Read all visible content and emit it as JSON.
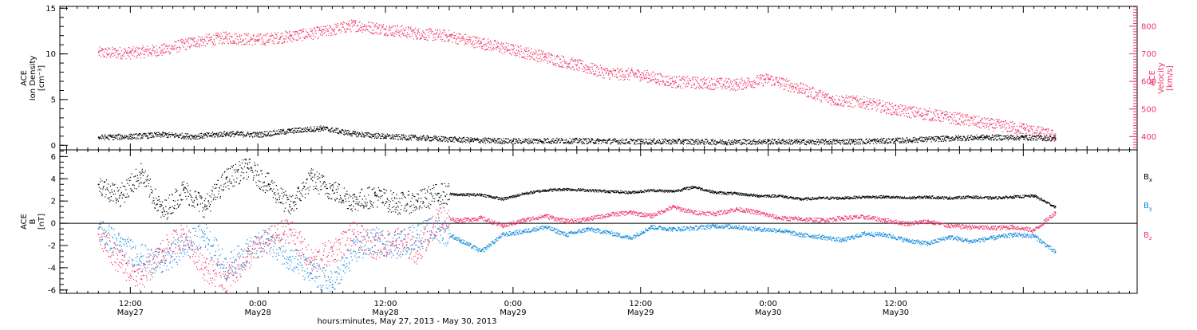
{
  "chart_data": [
    {
      "type": "scatter",
      "panel": "top",
      "ylabel_lines": [
        "ACE",
        "Ion Density",
        "[cm⁻³]"
      ],
      "ylim": [
        -0.5,
        15.2
      ],
      "yticks": [
        0,
        5,
        10,
        15
      ],
      "y2label_lines": [
        "ACE",
        "Velocity",
        "[km/s]"
      ],
      "y2lim": [
        352,
        872
      ],
      "y2ticks": [
        400,
        500,
        600,
        700,
        800
      ],
      "y2_color": "#ee3366",
      "series": [
        {
          "axis": "left",
          "color": "#000000",
          "points": [
            [
              9,
              0.9
            ],
            [
              12,
              1.0
            ],
            [
              15,
              1.2
            ],
            [
              18,
              1.0
            ],
            [
              21,
              1.3
            ],
            [
              24,
              1.2
            ],
            [
              27,
              1.6
            ],
            [
              30,
              1.9
            ],
            [
              33,
              1.3
            ],
            [
              36,
              1.0
            ],
            [
              40,
              0.8
            ],
            [
              44,
              0.6
            ],
            [
              48,
              0.5
            ],
            [
              52,
              0.55
            ],
            [
              56,
              0.5
            ],
            [
              60,
              0.45
            ],
            [
              64,
              0.45
            ],
            [
              68,
              0.4
            ],
            [
              72,
              0.45
            ],
            [
              76,
              0.4
            ],
            [
              80,
              0.45
            ],
            [
              84,
              0.55
            ],
            [
              88,
              0.75
            ],
            [
              92,
              0.9
            ],
            [
              96,
              0.9
            ],
            [
              99,
              0.8
            ]
          ]
        },
        {
          "axis": "right",
          "color": "#ee3366",
          "points": [
            [
              9,
              705
            ],
            [
              12,
              705
            ],
            [
              15,
              715
            ],
            [
              18,
              745
            ],
            [
              21,
              760
            ],
            [
              24,
              752
            ],
            [
              27,
              765
            ],
            [
              30,
              780
            ],
            [
              33,
              805
            ],
            [
              36,
              790
            ],
            [
              39,
              775
            ],
            [
              42,
              765
            ],
            [
              45,
              740
            ],
            [
              48,
              715
            ],
            [
              51,
              690
            ],
            [
              54,
              660
            ],
            [
              57,
              630
            ],
            [
              60,
              625
            ],
            [
              63,
              600
            ],
            [
              66,
              595
            ],
            [
              69,
              590
            ],
            [
              72,
              610
            ],
            [
              75,
              575
            ],
            [
              78,
              535
            ],
            [
              81,
              525
            ],
            [
              84,
              498
            ],
            [
              87,
              482
            ],
            [
              90,
              465
            ],
            [
              93,
              445
            ],
            [
              96,
              430
            ],
            [
              99,
              403
            ]
          ]
        }
      ]
    },
    {
      "type": "scatter",
      "panel": "bottom",
      "ylabel_lines": [
        "ACE",
        "B",
        "[nT]"
      ],
      "ylim": [
        -6.3,
        6.6
      ],
      "yticks": [
        -6,
        -4,
        -2,
        0,
        2,
        4,
        6
      ],
      "series": [
        {
          "name": "B",
          "subscript": "x",
          "color": "#000000",
          "points": [
            [
              9,
              3.5
            ],
            [
              11,
              2.5
            ],
            [
              13,
              4.5
            ],
            [
              15,
              1.0
            ],
            [
              17,
              3.0
            ],
            [
              19,
              1.5
            ],
            [
              21,
              4.0
            ],
            [
              23,
              5.0
            ],
            [
              25,
              3.5
            ],
            [
              27,
              1.5
            ],
            [
              29,
              4.0
            ],
            [
              31,
              3.0
            ],
            [
              33,
              2.0
            ],
            [
              35,
              2.5
            ],
            [
              37,
              1.8
            ],
            [
              39,
              2.0
            ],
            [
              41,
              2.7
            ],
            [
              43,
              2.6
            ],
            [
              45,
              2.6
            ],
            [
              47,
              2.2
            ],
            [
              49,
              2.7
            ],
            [
              51,
              3.0
            ],
            [
              53,
              3.1
            ],
            [
              55,
              3.0
            ],
            [
              57,
              2.9
            ],
            [
              59,
              2.8
            ],
            [
              61,
              3.0
            ],
            [
              63,
              2.9
            ],
            [
              65,
              3.3
            ],
            [
              67,
              2.8
            ],
            [
              69,
              2.7
            ],
            [
              71,
              2.5
            ],
            [
              73,
              2.5
            ],
            [
              75,
              2.2
            ],
            [
              77,
              2.3
            ],
            [
              79,
              2.3
            ],
            [
              81,
              2.4
            ],
            [
              83,
              2.4
            ],
            [
              85,
              2.3
            ],
            [
              87,
              2.4
            ],
            [
              89,
              2.3
            ],
            [
              91,
              2.4
            ],
            [
              93,
              2.3
            ],
            [
              95,
              2.4
            ],
            [
              97,
              2.5
            ],
            [
              99,
              1.5
            ]
          ]
        },
        {
          "name": "B",
          "subscript": "y",
          "color": "#1188dd",
          "points": [
            [
              9,
              -0.5
            ],
            [
              11,
              -2.0
            ],
            [
              13,
              -3.0
            ],
            [
              15,
              -3.5
            ],
            [
              17,
              -2.0
            ],
            [
              19,
              -1.0
            ],
            [
              21,
              -4.0
            ],
            [
              23,
              -2.5
            ],
            [
              25,
              -1.5
            ],
            [
              27,
              -3.0
            ],
            [
              29,
              -4.5
            ],
            [
              31,
              -5.5
            ],
            [
              33,
              -2.5
            ],
            [
              35,
              -1.5
            ],
            [
              37,
              -2.0
            ],
            [
              39,
              -1.0
            ],
            [
              41,
              -0.5
            ],
            [
              43,
              -1.5
            ],
            [
              45,
              -2.5
            ],
            [
              47,
              -1.0
            ],
            [
              49,
              -0.7
            ],
            [
              51,
              -0.3
            ],
            [
              53,
              -1.0
            ],
            [
              55,
              -0.5
            ],
            [
              57,
              -0.8
            ],
            [
              59,
              -1.3
            ],
            [
              61,
              -0.3
            ],
            [
              63,
              -0.5
            ],
            [
              65,
              -0.4
            ],
            [
              67,
              -0.2
            ],
            [
              69,
              -0.3
            ],
            [
              71,
              -0.5
            ],
            [
              73,
              -0.6
            ],
            [
              75,
              -1.0
            ],
            [
              77,
              -1.2
            ],
            [
              79,
              -1.5
            ],
            [
              81,
              -0.9
            ],
            [
              83,
              -1.0
            ],
            [
              85,
              -1.5
            ],
            [
              87,
              -1.8
            ],
            [
              89,
              -1.2
            ],
            [
              91,
              -1.6
            ],
            [
              93,
              -1.3
            ],
            [
              95,
              -1.0
            ],
            [
              97,
              -1.1
            ],
            [
              99,
              -2.6
            ]
          ]
        },
        {
          "name": "B",
          "subscript": "z",
          "color": "#ee3366",
          "points": [
            [
              9,
              -1.0
            ],
            [
              11,
              -3.5
            ],
            [
              13,
              -5.0
            ],
            [
              15,
              -2.5
            ],
            [
              17,
              -1.0
            ],
            [
              19,
              -4.0
            ],
            [
              21,
              -5.0
            ],
            [
              23,
              -3.0
            ],
            [
              25,
              -1.5
            ],
            [
              27,
              -0.5
            ],
            [
              29,
              -3.5
            ],
            [
              31,
              -2.5
            ],
            [
              33,
              -1.0
            ],
            [
              35,
              -2.0
            ],
            [
              37,
              -1.5
            ],
            [
              39,
              -2.5
            ],
            [
              41,
              0.5
            ],
            [
              43,
              0.3
            ],
            [
              45,
              0.5
            ],
            [
              47,
              -0.2
            ],
            [
              49,
              0.3
            ],
            [
              51,
              0.7
            ],
            [
              53,
              0.2
            ],
            [
              55,
              0.4
            ],
            [
              57,
              0.8
            ],
            [
              59,
              1.0
            ],
            [
              61,
              0.7
            ],
            [
              63,
              1.5
            ],
            [
              65,
              1.0
            ],
            [
              67,
              0.9
            ],
            [
              69,
              1.3
            ],
            [
              71,
              1.0
            ],
            [
              73,
              0.5
            ],
            [
              75,
              0.4
            ],
            [
              77,
              0.3
            ],
            [
              79,
              0.5
            ],
            [
              81,
              0.6
            ],
            [
              83,
              0.3
            ],
            [
              85,
              0.0
            ],
            [
              87,
              0.2
            ],
            [
              89,
              -0.2
            ],
            [
              91,
              -0.3
            ],
            [
              93,
              -0.4
            ],
            [
              95,
              -0.3
            ],
            [
              97,
              -0.6
            ],
            [
              99,
              1.0
            ]
          ]
        }
      ]
    }
  ],
  "time_axis": {
    "xlim": [
      5.37,
      106.71
    ],
    "xlabel": "hours:minutes, May 27, 2013 - May 30, 2013",
    "major_ticks": [
      {
        "t": 12,
        "time": "12:00",
        "day": "May27"
      },
      {
        "t": 24,
        "time": "0:00",
        "day": "May28"
      },
      {
        "t": 36,
        "time": "12:00",
        "day": "May28"
      },
      {
        "t": 48,
        "time": "0:00",
        "day": "May29"
      },
      {
        "t": 60,
        "time": "12:00",
        "day": "May29"
      },
      {
        "t": 72,
        "time": "0:00",
        "day": "May30"
      },
      {
        "t": 84,
        "time": "12:00",
        "day": "May30"
      }
    ]
  }
}
